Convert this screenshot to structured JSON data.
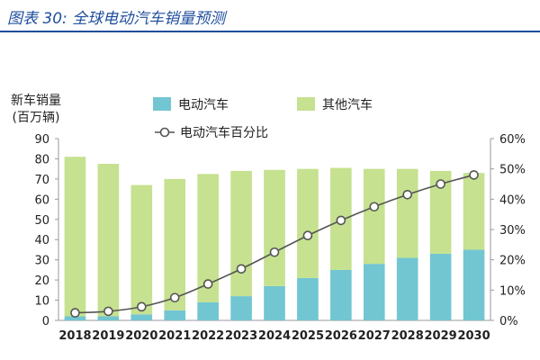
{
  "figure": {
    "title": "图表 30:  全球电动汽车销量预测"
  },
  "chart_data": {
    "type": "bar",
    "stacked": true,
    "categories": [
      "2018",
      "2019",
      "2020",
      "2021",
      "2022",
      "2023",
      "2024",
      "2025",
      "2026",
      "2027",
      "2028",
      "2029",
      "2030"
    ],
    "series": [
      {
        "name": "电动汽车",
        "type": "bar",
        "axis": "left",
        "color": "#72c6d1",
        "values": [
          2,
          2,
          3,
          5,
          9,
          12,
          17,
          21,
          25,
          28,
          31,
          33,
          35
        ]
      },
      {
        "name": "其他汽车",
        "type": "bar",
        "axis": "left",
        "color": "#c6e18f",
        "values": [
          79,
          75.5,
          64,
          65,
          63.5,
          62,
          57.5,
          54,
          50.5,
          47,
          44,
          41,
          38
        ]
      },
      {
        "name": "电动汽车百分比",
        "type": "line",
        "axis": "right",
        "color": "#555555",
        "values": [
          2.5,
          3,
          4.5,
          7.5,
          12,
          17,
          22.5,
          28,
          33,
          37.5,
          41.5,
          45,
          48
        ]
      }
    ],
    "ylabel": "新车销量\n(百万辆)",
    "ylim": [
      0,
      90
    ],
    "yticks": [
      0,
      10,
      20,
      30,
      40,
      50,
      60,
      70,
      80,
      90
    ],
    "y2lim": [
      0,
      60
    ],
    "y2ticks": [
      "0%",
      "10%",
      "20%",
      "30%",
      "40%",
      "50%",
      "60%"
    ],
    "grid": false,
    "legend_position": "top"
  }
}
